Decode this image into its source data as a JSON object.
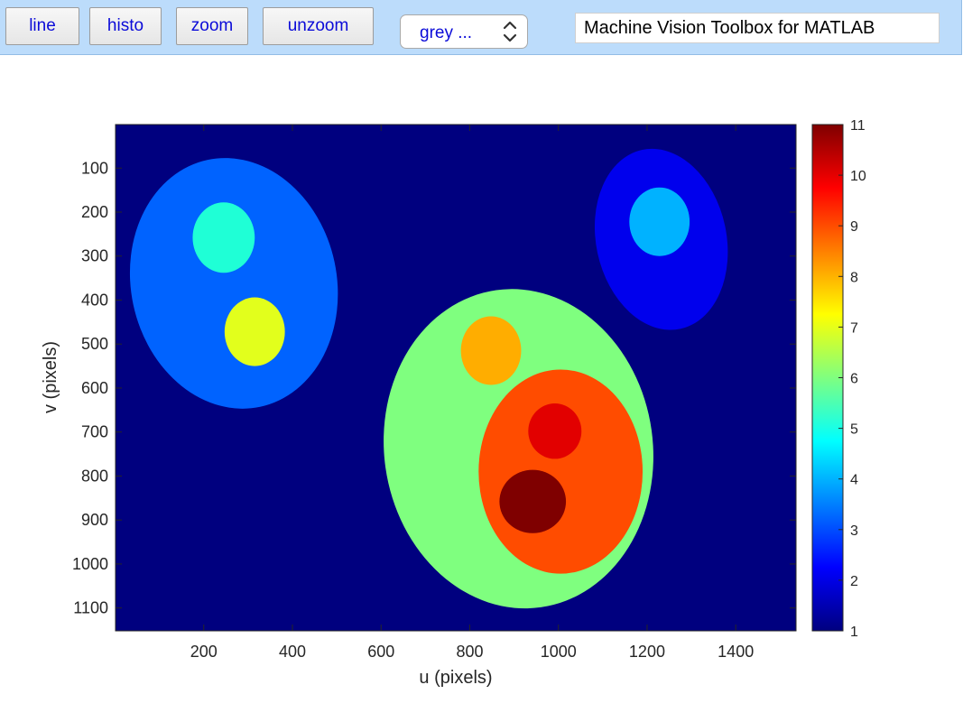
{
  "toolbar": {
    "buttons": [
      {
        "name": "line-button",
        "label": "line"
      },
      {
        "name": "histo-button",
        "label": "histo"
      },
      {
        "name": "zoom-button",
        "label": "zoom"
      },
      {
        "name": "unzoom-button",
        "label": "unzoom"
      }
    ],
    "colormap_select": {
      "value": "grey ...",
      "icon": "up-down-chevron-icon"
    },
    "title_field": "Machine Vision Toolbox for MATLAB"
  },
  "chart_data": {
    "type": "heatmap",
    "title": "",
    "xlabel": "u (pixels)",
    "ylabel": "v (pixels)",
    "xlim": [
      1,
      1536
    ],
    "ylim": [
      1,
      1152
    ],
    "y_direction": "reverse",
    "background_label": 1,
    "regions": [
      {
        "label": 3,
        "shape": "ellipse",
        "center": [
          268,
          362
        ],
        "radii": [
          232,
          287
        ],
        "rotation": -12
      },
      {
        "label": 5,
        "shape": "ellipse",
        "center": [
          245,
          258
        ],
        "radii": [
          70,
          80
        ],
        "rotation": 0
      },
      {
        "label": 7,
        "shape": "ellipse",
        "center": [
          315,
          472
        ],
        "radii": [
          68,
          78
        ],
        "rotation": 0
      },
      {
        "label": 2,
        "shape": "ellipse",
        "center": [
          1232,
          262
        ],
        "radii": [
          147,
          208
        ],
        "rotation": -12
      },
      {
        "label": 4,
        "shape": "ellipse",
        "center": [
          1228,
          222
        ],
        "radii": [
          68,
          78
        ],
        "rotation": 0
      },
      {
        "label": 6,
        "shape": "ellipse",
        "center": [
          910,
          738
        ],
        "radii": [
          303,
          364
        ],
        "rotation": -8
      },
      {
        "label": 8,
        "shape": "ellipse",
        "center": [
          848,
          515
        ],
        "radii": [
          68,
          78
        ],
        "rotation": 0
      },
      {
        "label": 9,
        "shape": "ellipse",
        "center": [
          1005,
          790
        ],
        "radii": [
          185,
          232
        ],
        "rotation": 0
      },
      {
        "label": 10,
        "shape": "ellipse",
        "center": [
          992,
          698
        ],
        "radii": [
          60,
          63
        ],
        "rotation": 0
      },
      {
        "label": 11,
        "shape": "ellipse",
        "center": [
          942,
          858
        ],
        "radii": [
          75,
          72
        ],
        "rotation": 0
      }
    ],
    "x_ticks": [
      200,
      400,
      600,
      800,
      1000,
      1200,
      1400
    ],
    "y_ticks": [
      100,
      200,
      300,
      400,
      500,
      600,
      700,
      800,
      900,
      1000,
      1100
    ],
    "colorbar": {
      "range": [
        1,
        11
      ],
      "ticks": [
        1,
        2,
        3,
        4,
        5,
        6,
        7,
        8,
        9,
        10,
        11
      ],
      "colormap": "jet",
      "label_colors": {
        "1": "#00007f",
        "2": "#0000ed",
        "3": "#0063ff",
        "4": "#00b2ff",
        "5": "#1fffd6",
        "6": "#7fff7f",
        "7": "#e2ff1c",
        "8": "#ffad00",
        "9": "#ff4c00",
        "10": "#e20000",
        "11": "#7f0000"
      }
    },
    "grid": false,
    "legend": "none"
  }
}
